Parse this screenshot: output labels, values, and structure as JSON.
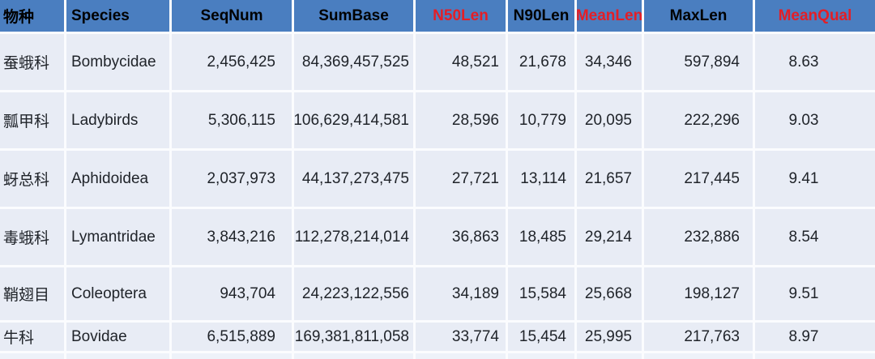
{
  "chart_data": {
    "type": "table",
    "title": "",
    "columns": [
      {
        "key": "species_cn",
        "label": "物种",
        "header_color": "#000000"
      },
      {
        "key": "species",
        "label": "Species",
        "header_color": "#000000"
      },
      {
        "key": "seq_num",
        "label": "SeqNum",
        "header_color": "#000000"
      },
      {
        "key": "sum_base",
        "label": "SumBase",
        "header_color": "#000000"
      },
      {
        "key": "n50_len",
        "label": "N50Len",
        "header_color": "#e41e26"
      },
      {
        "key": "n90_len",
        "label": "N90Len",
        "header_color": "#000000"
      },
      {
        "key": "mean_len",
        "label": "MeanLen",
        "header_color": "#e41e26"
      },
      {
        "key": "max_len",
        "label": "MaxLen",
        "header_color": "#000000"
      },
      {
        "key": "mean_qual",
        "label": "MeanQual",
        "header_color": "#e41e26"
      }
    ],
    "rows": [
      [
        "蚕蛾科",
        "Bombycidae",
        "2,456,425",
        "84,369,457,525",
        "48,521",
        "21,678",
        "34,346",
        "597,894",
        "8.63"
      ],
      [
        "瓢甲科",
        "Ladybirds",
        "5,306,115",
        "106,629,414,581",
        "28,596",
        "10,779",
        "20,095",
        "222,296",
        "9.03"
      ],
      [
        "蚜总科",
        "Aphidoidea",
        "2,037,973",
        "44,137,273,475",
        "27,721",
        "13,114",
        "21,657",
        "217,445",
        "9.41"
      ],
      [
        "毒蛾科",
        "Lymantridae",
        "3,843,216",
        "112,278,214,014",
        "36,863",
        "18,485",
        "29,214",
        "232,886",
        "8.54"
      ],
      [
        "鞘翅目",
        "Coleoptera",
        "943,704",
        "24,223,122,556",
        "34,189",
        "15,584",
        "25,668",
        "198,127",
        "9.51"
      ],
      [
        "牛科",
        "Bovidae",
        "6,515,889",
        "169,381,811,058",
        "33,774",
        "15,454",
        "25,995",
        "217,763",
        "8.97"
      ]
    ]
  },
  "colors": {
    "header_bg": "#4a7ec0",
    "header_text": "#000000",
    "header_accent_red": "#e41e26",
    "cell_bg": "#e8ecf5",
    "separator": "#fbfcfe",
    "body_text": "#20242a"
  }
}
